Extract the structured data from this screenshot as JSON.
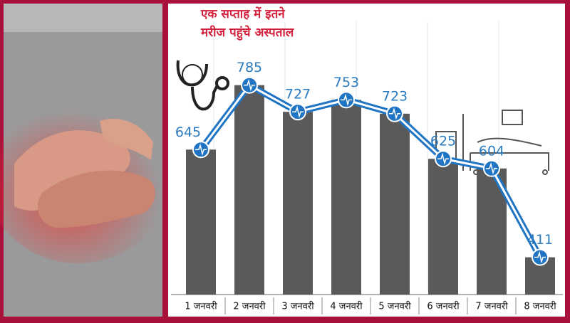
{
  "chart_data": {
    "type": "bar-line",
    "title_lines": [
      "एक सप्ताह में इतने",
      "मरीज पहुंचे अस्पताल"
    ],
    "categories": [
      "1 जनवरी",
      "2 जनवरी",
      "3 जनवरी",
      "4 जनवरी",
      "5 जनवरी",
      "6 जनवरी",
      "7 जनवरी",
      "8 जनवरी"
    ],
    "values": [
      645,
      785,
      727,
      753,
      723,
      625,
      604,
      411
    ],
    "bar_color": "#5a5a5a",
    "line_color": "#1f74c4",
    "label_color": "#2a7bc0",
    "title_color": "#d3203c",
    "ylim": [
      330,
      800
    ]
  }
}
